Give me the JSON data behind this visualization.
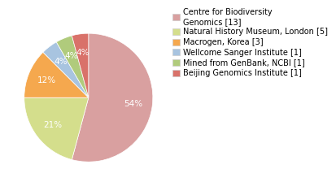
{
  "labels": [
    "Centre for Biodiversity\nGenomics [13]",
    "Natural History Museum, London [5]",
    "Macrogen, Korea [3]",
    "Wellcome Sanger Institute [1]",
    "Mined from GenBank, NCBI [1]",
    "Beijing Genomics Institute [1]"
  ],
  "values": [
    13,
    5,
    3,
    1,
    1,
    1
  ],
  "colors": [
    "#d9a0a0",
    "#d4de8c",
    "#f5a84e",
    "#a8c4e0",
    "#b0cb7c",
    "#d9726a"
  ],
  "autopct_fontsize": 7.5,
  "legend_fontsize": 7.0,
  "background_color": "#ffffff"
}
